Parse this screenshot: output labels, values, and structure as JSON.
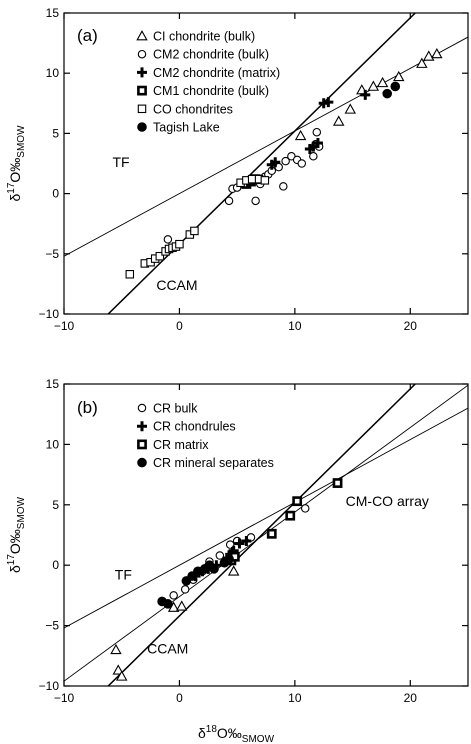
{
  "chart_data": [
    {
      "type": "scatter",
      "panel_label": "(a)",
      "xlim": [
        -10,
        25
      ],
      "ylim": [
        -10,
        15
      ],
      "xticks": [
        -10,
        0,
        10,
        20
      ],
      "yticks": [
        -10,
        -5,
        0,
        5,
        10,
        15
      ],
      "grid": false,
      "legend_position": "top-left",
      "ylabel": {
        "delta": "δ",
        "mass": "17",
        "rest": "O‰",
        "sub": "SMOW"
      },
      "lines": [
        {
          "name": "TF",
          "slope": 0.52,
          "intercept": 0.0
        },
        {
          "name": "CCAM",
          "slope": 0.94,
          "intercept": -4.2
        }
      ],
      "annotations": [
        {
          "text": "TF",
          "x": -5.8,
          "y": 2.2
        },
        {
          "text": "CCAM",
          "x": -2.0,
          "y": -8.0
        }
      ],
      "series": [
        {
          "name": "CI chondrite (bulk)",
          "marker": "triangle-open",
          "points": [
            [
              10.5,
              4.8
            ],
            [
              13.8,
              6.0
            ],
            [
              14.8,
              7.0
            ],
            [
              15.8,
              8.6
            ],
            [
              16.8,
              8.9
            ],
            [
              17.6,
              9.2
            ],
            [
              19.0,
              9.7
            ],
            [
              21.0,
              10.8
            ],
            [
              21.6,
              11.4
            ],
            [
              22.3,
              11.6
            ]
          ]
        },
        {
          "name": "CM2 chondrite (bulk)",
          "marker": "circle-open",
          "points": [
            [
              -1.0,
              -3.8
            ],
            [
              4.3,
              -0.6
            ],
            [
              4.6,
              0.4
            ],
            [
              5.0,
              0.5
            ],
            [
              5.5,
              0.8
            ],
            [
              6.0,
              1.0
            ],
            [
              6.2,
              1.2
            ],
            [
              6.6,
              -0.6
            ],
            [
              7.0,
              0.8
            ],
            [
              7.4,
              1.4
            ],
            [
              7.7,
              1.6
            ],
            [
              8.0,
              1.9
            ],
            [
              8.6,
              2.2
            ],
            [
              9.0,
              0.6
            ],
            [
              9.2,
              2.7
            ],
            [
              9.7,
              3.1
            ],
            [
              10.2,
              2.8
            ],
            [
              10.6,
              2.5
            ],
            [
              11.6,
              3.1
            ],
            [
              11.8,
              4.1
            ],
            [
              11.9,
              5.1
            ],
            [
              12.1,
              3.9
            ]
          ]
        },
        {
          "name": "CM2 chondrite (matrix)",
          "marker": "plus",
          "points": [
            [
              8.0,
              2.4
            ],
            [
              8.3,
              2.6
            ],
            [
              11.3,
              3.7
            ],
            [
              11.6,
              3.9
            ],
            [
              12.0,
              4.2
            ],
            [
              12.5,
              7.5
            ],
            [
              12.9,
              7.6
            ],
            [
              16.1,
              8.2
            ]
          ]
        },
        {
          "name": "CM1 chondrite (bulk)",
          "marker": "square-dot",
          "points": [
            [
              5.8,
              0.8
            ],
            [
              6.2,
              1.0
            ],
            [
              6.6,
              1.2
            ]
          ]
        },
        {
          "name": "CO chondrites",
          "marker": "square-open",
          "points": [
            [
              -4.3,
              -6.7
            ],
            [
              -3.0,
              -5.8
            ],
            [
              -2.5,
              -5.7
            ],
            [
              -2.1,
              -5.4
            ],
            [
              -1.7,
              -5.2
            ],
            [
              -1.2,
              -4.8
            ],
            [
              -0.9,
              -4.6
            ],
            [
              -0.6,
              -4.5
            ],
            [
              -0.3,
              -4.4
            ],
            [
              0.0,
              -4.2
            ],
            [
              0.9,
              -3.4
            ],
            [
              1.3,
              -3.1
            ],
            [
              5.3,
              0.9
            ],
            [
              5.8,
              1.1
            ],
            [
              6.3,
              1.2
            ],
            [
              6.9,
              1.2
            ],
            [
              7.4,
              1.1
            ]
          ]
        },
        {
          "name": "Tagish Lake",
          "marker": "circle-filled",
          "points": [
            [
              18.0,
              8.3
            ],
            [
              18.7,
              8.9
            ]
          ]
        }
      ]
    },
    {
      "type": "scatter",
      "panel_label": "(b)",
      "xlim": [
        -10,
        25
      ],
      "ylim": [
        -10,
        15
      ],
      "xticks": [
        -10,
        0,
        10,
        20
      ],
      "yticks": [
        -10,
        -5,
        0,
        5,
        10,
        15
      ],
      "grid": false,
      "legend_position": "top-left",
      "xlabel": {
        "delta": "δ",
        "mass": "18",
        "rest": "O‰",
        "sub": "SMOW"
      },
      "ylabel": {
        "delta": "δ",
        "mass": "17",
        "rest": "O‰",
        "sub": "SMOW"
      },
      "lines": [
        {
          "name": "TF",
          "slope": 0.52,
          "intercept": 0.0
        },
        {
          "name": "CCAM",
          "slope": 0.94,
          "intercept": -4.2
        },
        {
          "name": "CM-CO array",
          "slope": 0.7,
          "intercept": -2.6
        }
      ],
      "annotations": [
        {
          "text": "TF",
          "x": -5.6,
          "y": -1.2
        },
        {
          "text": "CCAM",
          "x": -2.8,
          "y": -7.3
        },
        {
          "text": "CM-CO array",
          "x": 14.4,
          "y": 4.9
        }
      ],
      "series": [
        {
          "name": "CR bulk",
          "marker": "circle-open",
          "points": [
            [
              -0.5,
              -2.5
            ],
            [
              0.5,
              -2.0
            ],
            [
              1.2,
              -1.2
            ],
            [
              2.0,
              -0.5
            ],
            [
              2.6,
              0.3
            ],
            [
              3.5,
              0.8
            ],
            [
              4.4,
              1.7
            ],
            [
              5.0,
              2.0
            ],
            [
              6.2,
              2.3
            ],
            [
              10.9,
              4.7
            ]
          ]
        },
        {
          "name": "CR chondrules",
          "marker": "plus",
          "points": [
            [
              1.4,
              -0.9
            ],
            [
              2.0,
              -0.5
            ],
            [
              2.5,
              -0.3
            ],
            [
              3.2,
              0.0
            ],
            [
              4.2,
              0.6
            ],
            [
              4.4,
              0.9
            ],
            [
              4.6,
              1.1
            ],
            [
              4.7,
              1.2
            ],
            [
              5.2,
              1.8
            ],
            [
              5.8,
              2.0
            ]
          ]
        },
        {
          "name": "CR matrix",
          "marker": "square-dot",
          "points": [
            [
              4.5,
              0.4
            ],
            [
              4.8,
              0.7
            ],
            [
              8.0,
              2.6
            ],
            [
              9.6,
              4.1
            ],
            [
              10.2,
              5.3
            ],
            [
              13.7,
              6.8
            ]
          ]
        },
        {
          "name": "CR mineral separates",
          "marker": "circle-filled",
          "points": [
            [
              -1.5,
              -3.0
            ],
            [
              -1.0,
              -3.2
            ],
            [
              0.6,
              -1.3
            ],
            [
              1.1,
              -0.9
            ],
            [
              1.6,
              -0.5
            ],
            [
              2.2,
              -0.3
            ],
            [
              2.6,
              0.0
            ],
            [
              3.0,
              -0.3
            ],
            [
              3.9,
              0.2
            ],
            [
              4.3,
              0.5
            ]
          ]
        },
        {
          "name": "",
          "marker": "triangle-open",
          "points": [
            [
              -5.5,
              -7.0
            ],
            [
              -5.3,
              -8.7
            ],
            [
              -5.0,
              -9.2
            ],
            [
              -0.5,
              -3.5
            ],
            [
              0.2,
              -3.4
            ],
            [
              4.7,
              -0.5
            ]
          ]
        }
      ]
    }
  ]
}
